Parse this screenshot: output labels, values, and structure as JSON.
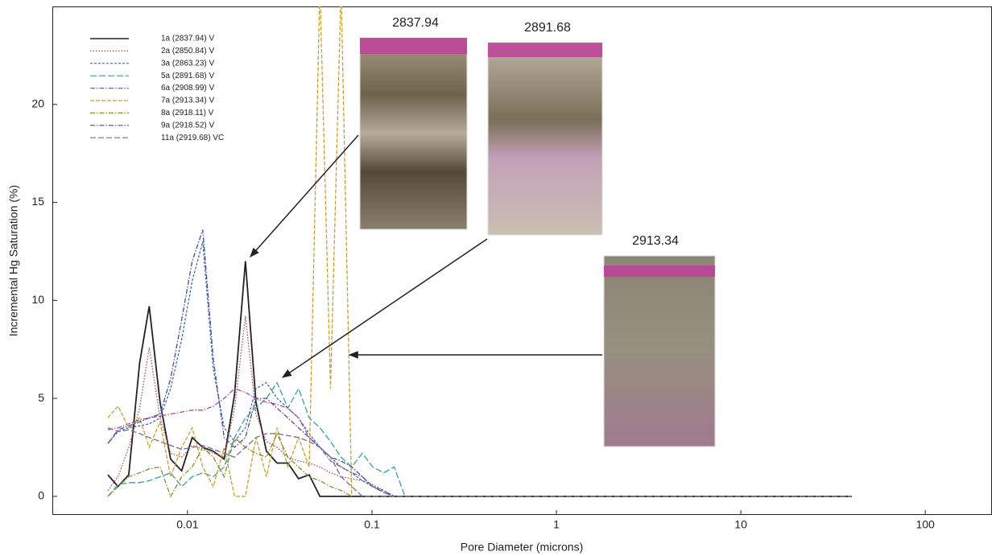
{
  "chart_data": {
    "type": "line",
    "x_label": "Pore Diameter (microns)",
    "y_label": "Incremental  Hg Saturation (%)",
    "xscale": "log",
    "xlim": [
      0.00185,
      230
    ],
    "ylim": [
      -0.95,
      25
    ],
    "xticks": [
      0.01,
      0.1,
      1,
      10,
      100
    ],
    "yticks": [
      0,
      5,
      10,
      15,
      20
    ],
    "legend": "upper left",
    "annotations": [
      "2837.94",
      "2891.68",
      "2913.34"
    ],
    "x": [
      0.0037,
      0.0042,
      0.0048,
      0.0055,
      0.0062,
      0.0071,
      0.0081,
      0.0093,
      0.0106,
      0.0121,
      0.0138,
      0.0158,
      0.018,
      0.0206,
      0.0235,
      0.0268,
      0.0306,
      0.035,
      0.04,
      0.0457,
      0.0522,
      0.0596,
      0.068,
      0.0777,
      0.0887,
      0.101,
      0.116,
      0.132,
      0.151,
      40
    ],
    "series": [
      {
        "name": "1a (2837.94) V",
        "color": "#222222",
        "dash": "none",
        "values": [
          1.1,
          0.5,
          1.1,
          6.8,
          9.7,
          4.8,
          1.9,
          1.3,
          3.0,
          2.5,
          2.3,
          1.9,
          5.2,
          12.0,
          4.8,
          2.3,
          1.7,
          1.7,
          0.9,
          1.1,
          0,
          0,
          0,
          0,
          0,
          0,
          0,
          0,
          0,
          0
        ]
      },
      {
        "name": "2a (2850.84) V",
        "color": "#b04650",
        "dash": "1.5,2",
        "values": [
          0.3,
          1.0,
          2.5,
          4.5,
          7.6,
          4.0,
          2.2,
          2.0,
          2.6,
          2.4,
          2.2,
          2.0,
          4.5,
          9.2,
          4.2,
          2.8,
          2.5,
          2.0,
          1.8,
          1.7,
          1.5,
          1.2,
          1.0,
          0.9,
          0.8,
          0.6,
          0.3,
          0,
          null,
          null
        ]
      },
      {
        "name": "3a (2863.23) V",
        "color": "#3a6fa8",
        "dash": "3,2",
        "values": [
          2.7,
          3.3,
          3.5,
          3.6,
          3.7,
          4.0,
          5.5,
          8.0,
          11.0,
          13.0,
          6.5,
          3.5,
          2.8,
          3.5,
          5.5,
          5.8,
          5.0,
          4.5,
          4.0,
          3.2,
          2.5,
          2.0,
          1.5,
          1.2,
          0.8,
          0.5,
          0.3,
          0,
          null,
          null
        ]
      },
      {
        "name": "5a (2891.68) V",
        "color": "#3aa0a0",
        "dash": "8,3",
        "values": [
          0,
          0.6,
          0.7,
          0.7,
          0.8,
          1.0,
          1.2,
          0.5,
          1.0,
          1.2,
          1.0,
          1.5,
          3.0,
          4.0,
          4.5,
          5.0,
          5.8,
          4.5,
          5.5,
          4.0,
          3.5,
          2.8,
          2.0,
          1.5,
          2.2,
          1.5,
          1.2,
          1.5,
          0,
          null
        ]
      },
      {
        "name": "6a (2908.99) V",
        "color": "#a050a8",
        "dash": "6,2,1.5,2",
        "values": [
          3.4,
          3.5,
          3.7,
          3.9,
          4.0,
          4.1,
          4.2,
          4.3,
          4.4,
          4.4,
          4.6,
          5.0,
          5.5,
          5.3,
          5.0,
          4.8,
          4.7,
          4.5,
          4.0,
          3.0,
          2.5,
          1.8,
          1.5,
          1.2,
          1.0,
          0.5,
          0.2,
          0,
          null,
          null
        ]
      },
      {
        "name": "7a (2913.34) V",
        "color": "#c8a030",
        "dash": "5,2",
        "values": [
          4.0,
          4.6,
          3.5,
          4.0,
          2.5,
          3.8,
          1.0,
          2.5,
          3.5,
          1.5,
          0.5,
          2.5,
          0,
          0,
          3.0,
          1.0,
          3.5,
          1.5,
          3.0,
          1.5,
          26,
          5.5,
          26,
          0,
          null,
          null,
          null,
          null,
          null,
          null
        ]
      },
      {
        "name": "8a (2918.11) V",
        "color": "#8a8a30",
        "dash": "6,2,1.5,2",
        "values": [
          0,
          0.5,
          1.0,
          1.2,
          1.4,
          1.5,
          0,
          1.0,
          1.5,
          2.5,
          2.0,
          1.0,
          3.0,
          2.5,
          2.2,
          2.0,
          3.2,
          2.0,
          1.5,
          1.0,
          0.8,
          0.5,
          0.3,
          0,
          null,
          null,
          null,
          null,
          null,
          null
        ]
      },
      {
        "name": "9a (2918.52) V",
        "color": "#4a4aa0",
        "dash": "6,2,1.5,2",
        "values": [
          2.7,
          3.4,
          3.6,
          3.8,
          4.0,
          4.2,
          6.0,
          9.0,
          12.0,
          13.6,
          7.0,
          3.0,
          2.5,
          3.0,
          5.0,
          5.0,
          4.5,
          4.0,
          3.5,
          3.0,
          2.5,
          2.0,
          1.8,
          1.5,
          1.0,
          0.5,
          0.2,
          0,
          null,
          null
        ]
      },
      {
        "name": "11a (2919.68) VC",
        "color": "#7a6a90",
        "dash": "7,3",
        "values": [
          3.5,
          3.3,
          3.4,
          3.2,
          3.0,
          2.8,
          2.6,
          2.4,
          2.5,
          2.6,
          2.4,
          2.2,
          2.0,
          2.5,
          3.0,
          3.2,
          3.2,
          3.1,
          3.0,
          2.8,
          2.5,
          2.0,
          1.0,
          0.5,
          0,
          0,
          0,
          0,
          0,
          0
        ]
      }
    ]
  }
}
